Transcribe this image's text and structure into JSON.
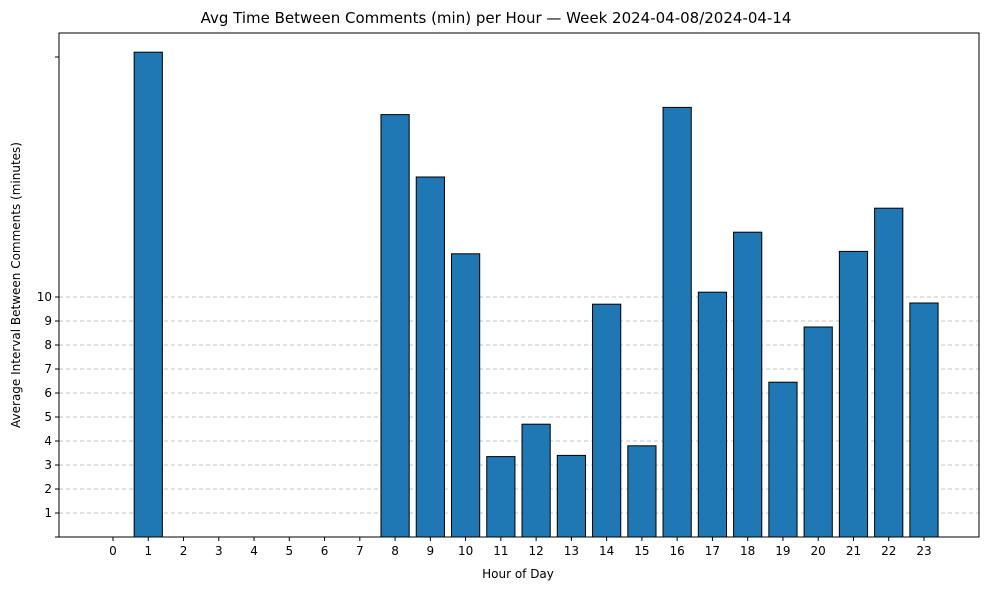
{
  "chart_data": {
    "type": "bar",
    "title": "Avg Time Between Comments (min) per Hour — Week 2024-04-08/2024-04-14",
    "xlabel": "Hour of Day",
    "ylabel": "Average Interval Between Comments (minutes)",
    "categories": [
      "0",
      "1",
      "2",
      "3",
      "4",
      "5",
      "6",
      "7",
      "8",
      "9",
      "10",
      "11",
      "12",
      "13",
      "14",
      "15",
      "16",
      "17",
      "18",
      "19",
      "20",
      "21",
      "22",
      "23"
    ],
    "values": [
      0,
      20.2,
      0,
      0,
      0,
      0,
      0,
      0,
      17.6,
      15.0,
      11.8,
      3.35,
      4.7,
      3.4,
      9.7,
      3.8,
      17.9,
      10.2,
      12.7,
      6.45,
      8.75,
      11.9,
      13.7,
      9.75
    ],
    "yticks": [
      "1",
      "2",
      "3",
      "4",
      "5",
      "6",
      "7",
      "8",
      "9",
      "10"
    ],
    "ylim": [
      0,
      21.0
    ],
    "grid": "y, up to 10",
    "bar_color": "#1f77b4",
    "edge_color": "#000000"
  }
}
